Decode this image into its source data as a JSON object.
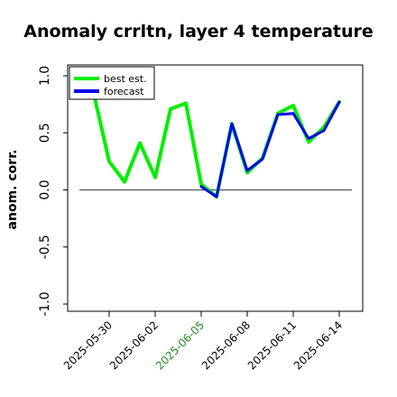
{
  "chart_data": {
    "type": "line",
    "title": "Anomaly crrltn, layer 4 temperature",
    "ylabel": "anom. corr.",
    "xlabel": "",
    "ylim": [
      -1.0,
      1.0
    ],
    "ytick_labels": [
      "-1.0",
      "-0.5",
      "0.0",
      "0.5",
      "1.0"
    ],
    "yticks": [
      -1.0,
      -0.5,
      0.0,
      0.5,
      1.0
    ],
    "xtick_labels": [
      "2025-05-30",
      "2025-06-02",
      "2025-06-05",
      "2025-06-08",
      "2025-06-11",
      "2025-06-14"
    ],
    "xtick_highlight_index": 2,
    "xtick_highlight_color": "#228b22",
    "reference_line": 0.0,
    "x_start": "2025-05-30",
    "legend": {
      "position": "top-left"
    },
    "series": [
      {
        "name": "best est.",
        "color": "#00ee00",
        "x": [
          "2025-05-29",
          "2025-05-30",
          "2025-05-31",
          "2025-06-01",
          "2025-06-02",
          "2025-06-03",
          "2025-06-04",
          "2025-06-05",
          "2025-06-06",
          "2025-06-07",
          "2025-06-08",
          "2025-06-09",
          "2025-06-10",
          "2025-06-11",
          "2025-06-12",
          "2025-06-13",
          "2025-06-14"
        ],
        "values": [
          0.84,
          0.25,
          0.07,
          0.41,
          0.11,
          0.71,
          0.76,
          0.05,
          -0.06,
          0.58,
          0.15,
          0.28,
          0.67,
          0.74,
          0.42,
          0.55,
          0.77
        ]
      },
      {
        "name": "forecast",
        "color": "#0000ee",
        "x": [
          "2025-06-05",
          "2025-06-06",
          "2025-06-07",
          "2025-06-08",
          "2025-06-09",
          "2025-06-10",
          "2025-06-11",
          "2025-06-12",
          "2025-06-13",
          "2025-06-14"
        ],
        "values": [
          0.03,
          -0.06,
          0.58,
          0.17,
          0.27,
          0.66,
          0.67,
          0.45,
          0.52,
          0.77
        ]
      }
    ]
  }
}
